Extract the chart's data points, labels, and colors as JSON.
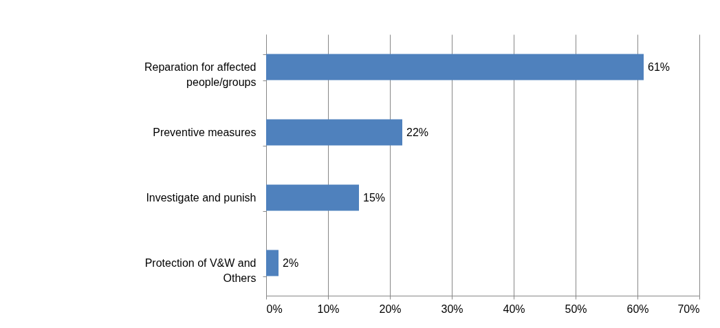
{
  "chart_data": {
    "type": "bar",
    "orientation": "horizontal",
    "categories": [
      "Reparation for affected people/groups",
      "Preventive measures",
      "Investigate and punish",
      "Protection of V&W and Others"
    ],
    "values": [
      61,
      22,
      15,
      2
    ],
    "color": "#4f81bd",
    "value_labels": [
      "61%",
      "22%",
      "15%",
      "2%"
    ],
    "xlim": [
      0,
      70
    ],
    "xticks": [
      {
        "value": 0,
        "label": "0%"
      },
      {
        "value": 10,
        "label": "10%"
      },
      {
        "value": 20,
        "label": "20%"
      },
      {
        "value": 30,
        "label": "30%"
      },
      {
        "value": 40,
        "label": "40%"
      },
      {
        "value": 50,
        "label": "50%"
      },
      {
        "value": 60,
        "label": "60%"
      },
      {
        "value": 70,
        "label": "70%"
      }
    ],
    "grid": "x"
  }
}
